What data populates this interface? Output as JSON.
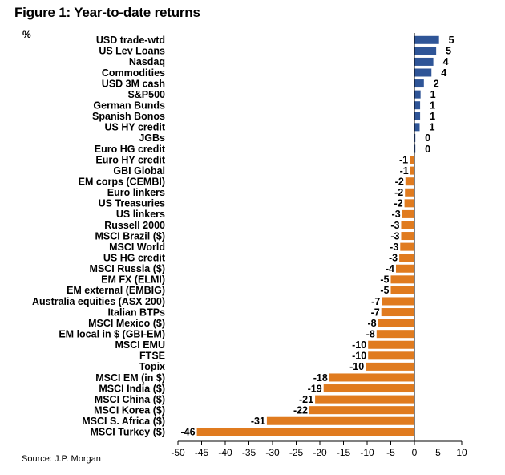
{
  "title": "Figure 1: Year-to-date returns",
  "unit": "%",
  "source": "Source: J.P. Morgan",
  "chart_data": {
    "type": "bar",
    "orientation": "horizontal",
    "categories": [
      "USD trade-wtd",
      "US Lev Loans",
      "Nasdaq",
      "Commodities",
      "USD 3M cash",
      "S&P500",
      "German Bunds",
      "Spanish Bonos",
      "US HY credit",
      "JGBs",
      "Euro HG credit",
      "Euro HY credit",
      "GBI Global",
      "EM corps (CEMBI)",
      "Euro linkers",
      "US Treasuries",
      "US linkers",
      "Russell 2000",
      "MSCI Brazil ($)",
      "MSCI World",
      "US HG credit",
      "MSCI Russia ($)",
      "EM FX (ELMI)",
      "EM external (EMBIG)",
      "Australia equities (ASX 200)",
      "Italian BTPs",
      "MSCI Mexico ($)",
      "EM local in $ (GBI-EM)",
      "MSCI EMU",
      "FTSE",
      "Topix",
      "MSCI EM (in $)",
      "MSCI India ($)",
      "MSCI China ($)",
      "MSCI Korea ($)",
      "MSCI S. Africa ($)",
      "MSCI Turkey ($)"
    ],
    "values": [
      5.2,
      4.6,
      4.0,
      3.6,
      2.0,
      1.3,
      1.2,
      1.2,
      1.1,
      0.2,
      0.2,
      -1.0,
      -0.9,
      -1.9,
      -2.0,
      -2.1,
      -2.6,
      -2.8,
      -2.8,
      -3.0,
      -3.2,
      -3.9,
      -5.0,
      -5.0,
      -6.9,
      -7.0,
      -7.7,
      -8.0,
      -9.8,
      -9.8,
      -10.3,
      -18.0,
      -19.2,
      -21.0,
      -22.2,
      -31.2,
      -46.0
    ],
    "labels": [
      "5",
      "5",
      "4",
      "4",
      "2",
      "1",
      "1",
      "1",
      "1",
      "0",
      "0",
      "-1",
      "-1",
      "-2",
      "-2",
      "-2",
      "-3",
      "-3",
      "-3",
      "-3",
      "-3",
      "-4",
      "-5",
      "-5",
      "-7",
      "-7",
      "-8",
      "-8",
      "-10",
      "-10",
      "-10",
      "-18",
      "-19",
      "-21",
      "-22",
      "-31",
      "-46"
    ],
    "xlim": [
      -50,
      10
    ],
    "xticks": [
      -50,
      -45,
      -40,
      -35,
      -30,
      -25,
      -20,
      -15,
      -10,
      -5,
      0,
      5,
      10
    ],
    "colors": {
      "positive": "#2f5597",
      "negative": "#e07b1f"
    },
    "grid": false,
    "legend": "none"
  }
}
